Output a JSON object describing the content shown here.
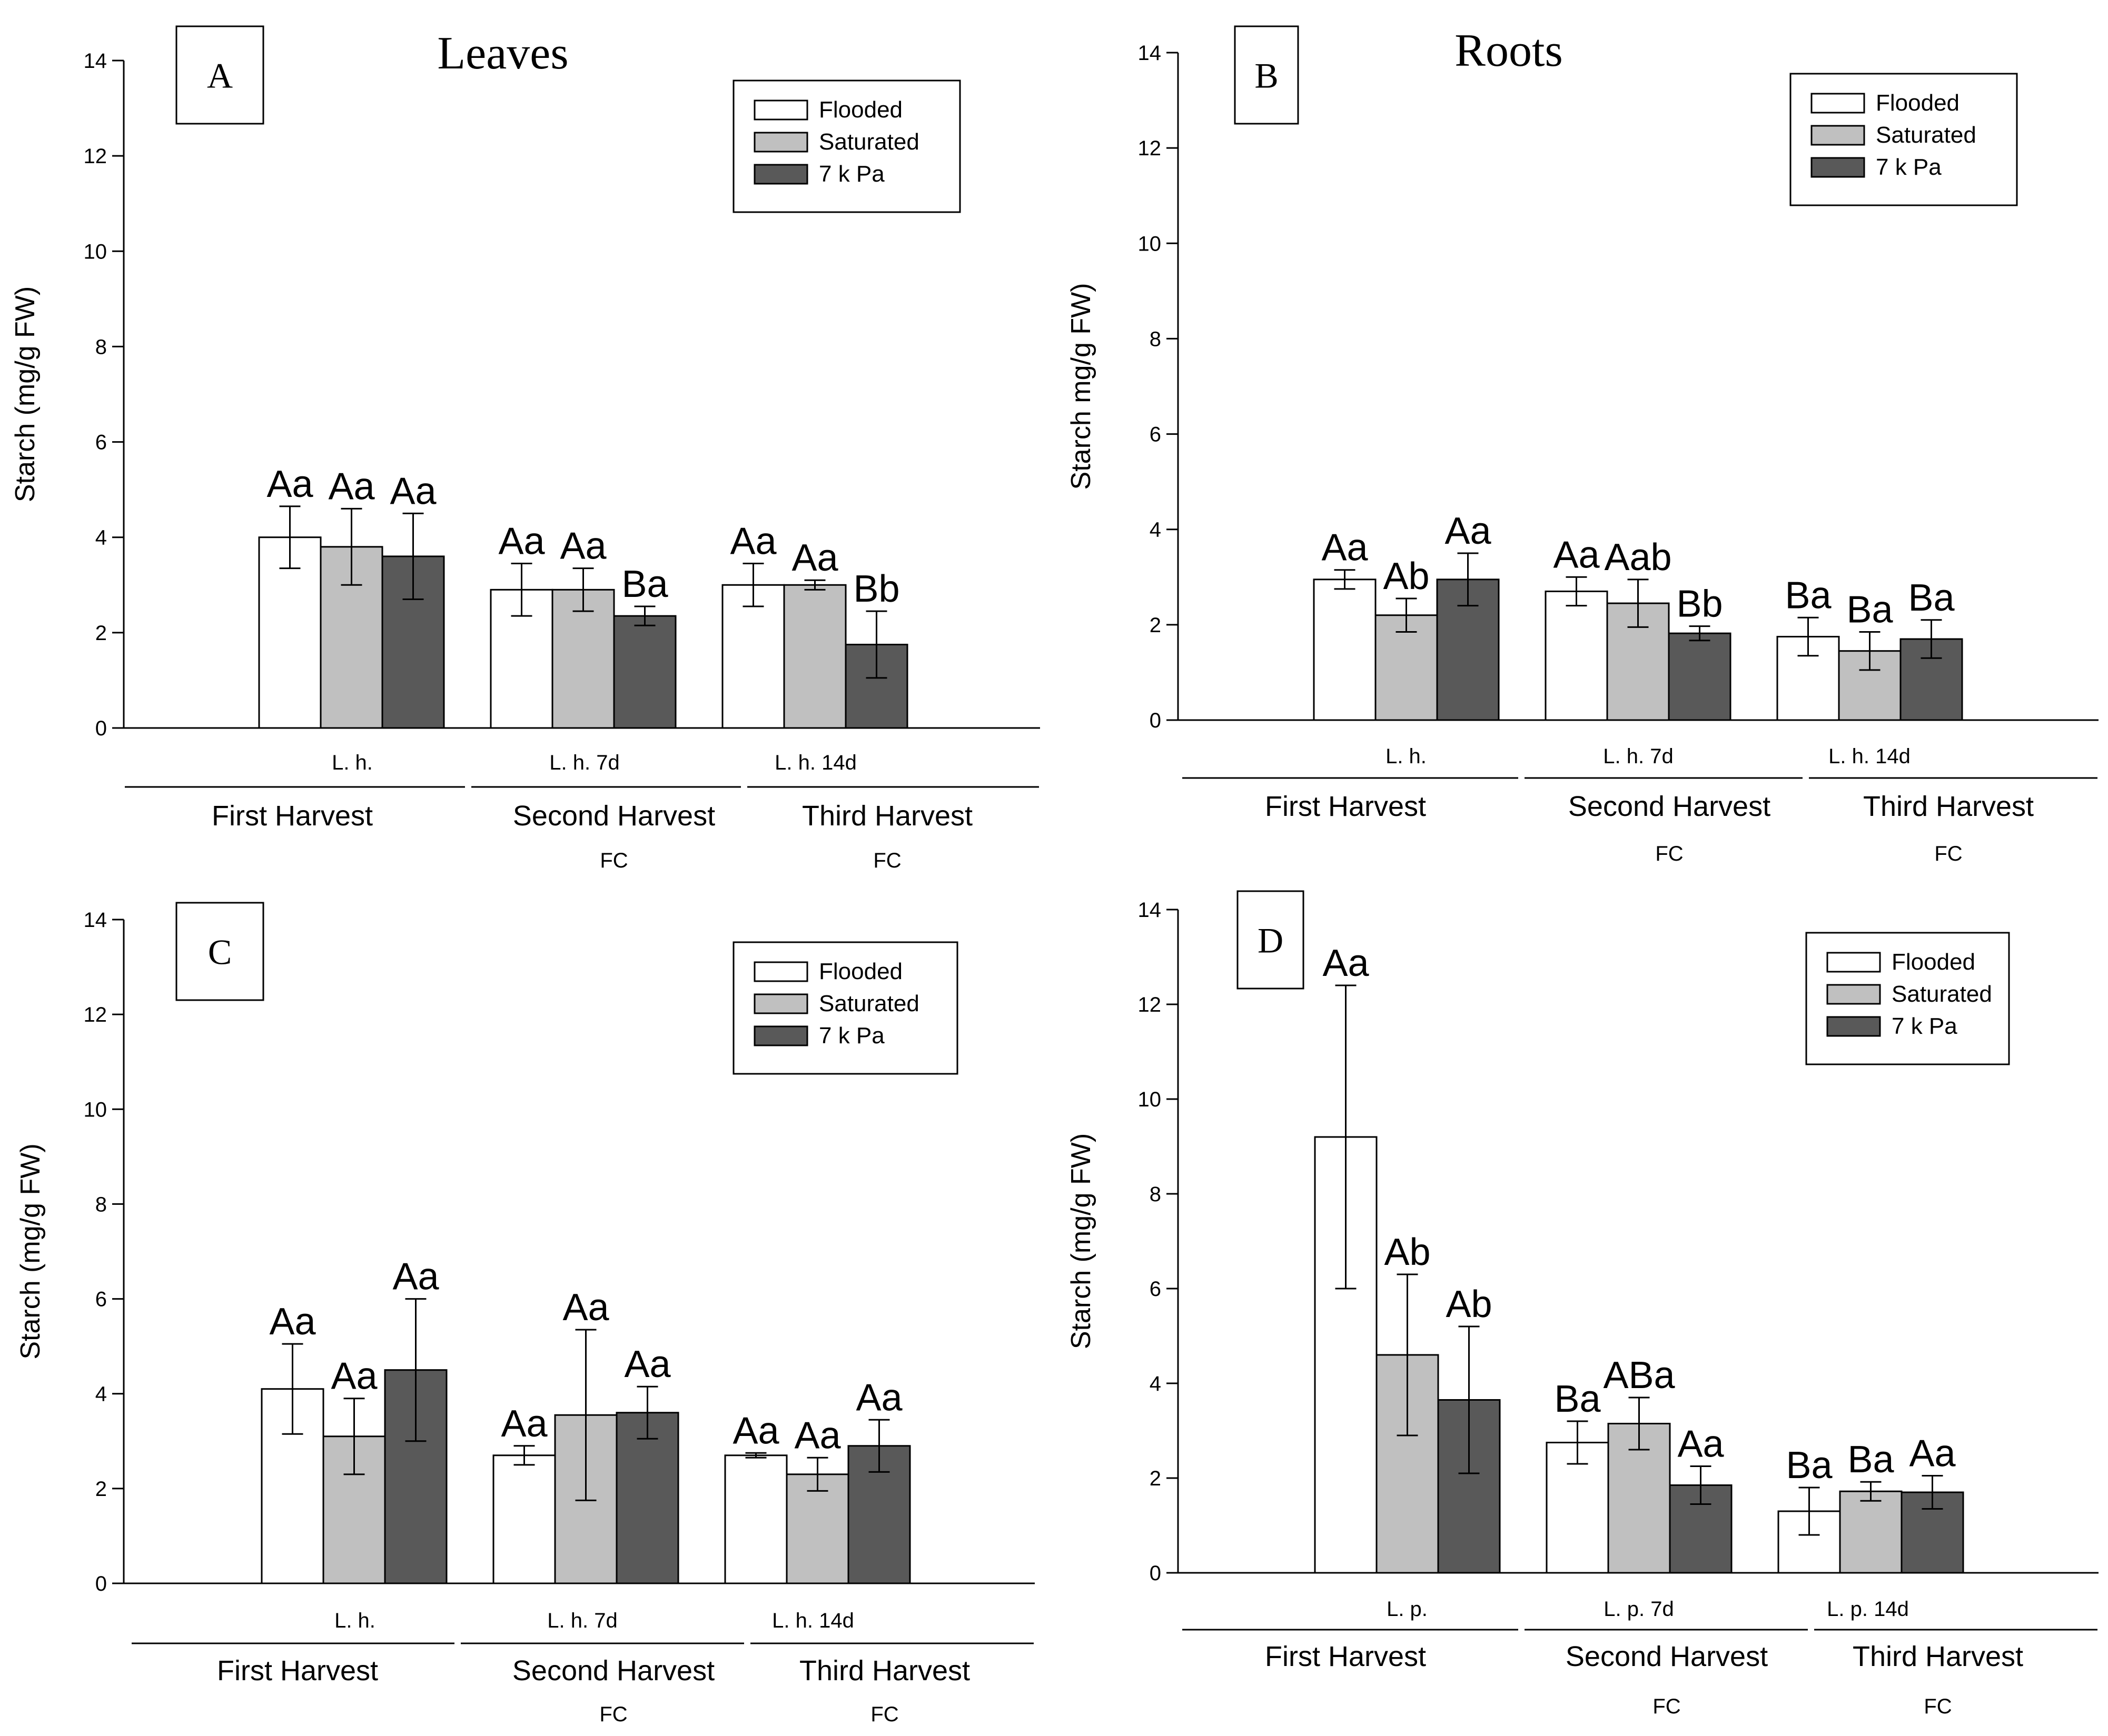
{
  "chart_data": [
    {
      "type": "bar",
      "panel_label": "A",
      "title": "Leaves",
      "ylabel": "Starch (mg/g FW)",
      "xlabel": "",
      "ylim": [
        0,
        14
      ],
      "yticks": [
        0,
        2,
        4,
        6,
        8,
        10,
        12,
        14
      ],
      "grid": false,
      "legend_position": "top-right",
      "categories": [
        "L. h.",
        "L. h. 7d",
        "L. h. 14d"
      ],
      "harvests": [
        {
          "name": "First Harvest",
          "sub": ""
        },
        {
          "name": "Second Harvest",
          "sub": "FC"
        },
        {
          "name": "Third Harvest",
          "sub": "FC"
        }
      ],
      "series": [
        {
          "name": "Flooded",
          "color": "#ffffff",
          "values": [
            4.0,
            2.9,
            3.0
          ],
          "errors": [
            0.65,
            0.55,
            0.45
          ],
          "labels": [
            "Aa",
            "Aa",
            "Aa"
          ]
        },
        {
          "name": "Saturated",
          "color": "#c0c0c0",
          "values": [
            3.8,
            2.9,
            3.0
          ],
          "errors": [
            0.8,
            0.45,
            0.1
          ],
          "labels": [
            "Aa",
            "Aa",
            "Aa"
          ]
        },
        {
          "name": "7 k Pa",
          "color": "#595959",
          "values": [
            3.6,
            2.35,
            1.75
          ],
          "errors": [
            0.9,
            0.2,
            0.7
          ],
          "labels": [
            "Aa",
            "Ba",
            "Bb"
          ]
        }
      ]
    },
    {
      "type": "bar",
      "panel_label": "B",
      "title": "Roots",
      "ylabel": "Starch mg/g FW)",
      "xlabel": "",
      "ylim": [
        0,
        14
      ],
      "yticks": [
        0,
        2,
        4,
        6,
        8,
        10,
        12,
        14
      ],
      "grid": false,
      "legend_position": "top-right",
      "categories": [
        "L. h.",
        "L. h. 7d",
        "L. h. 14d"
      ],
      "harvests": [
        {
          "name": "First Harvest",
          "sub": ""
        },
        {
          "name": "Second Harvest",
          "sub": "FC"
        },
        {
          "name": "Third Harvest",
          "sub": "FC"
        }
      ],
      "series": [
        {
          "name": "Flooded",
          "color": "#ffffff",
          "values": [
            2.95,
            2.7,
            1.75
          ],
          "errors": [
            0.2,
            0.3,
            0.4
          ],
          "labels": [
            "Aa",
            "Aa",
            "Ba"
          ]
        },
        {
          "name": "Saturated",
          "color": "#c0c0c0",
          "values": [
            2.2,
            2.45,
            1.45
          ],
          "errors": [
            0.35,
            0.5,
            0.4
          ],
          "labels": [
            "Ab",
            "Aab",
            "Ba"
          ]
        },
        {
          "name": "7 k Pa",
          "color": "#595959",
          "values": [
            2.95,
            1.82,
            1.7
          ],
          "errors": [
            0.55,
            0.15,
            0.4
          ],
          "labels": [
            "Aa",
            "Bb",
            "Ba"
          ]
        }
      ]
    },
    {
      "type": "bar",
      "panel_label": "C",
      "title": "",
      "ylabel": "Starch (mg/g FW)",
      "xlabel": "",
      "ylim": [
        0,
        14
      ],
      "yticks": [
        0,
        2,
        4,
        6,
        8,
        10,
        12,
        14
      ],
      "grid": false,
      "legend_position": "top-right",
      "categories": [
        "L. h.",
        "L. h. 7d",
        "L. h. 14d"
      ],
      "harvests": [
        {
          "name": "First Harvest",
          "sub": ""
        },
        {
          "name": "Second Harvest",
          "sub": "FC"
        },
        {
          "name": "Third Harvest",
          "sub": "FC"
        }
      ],
      "series": [
        {
          "name": "Flooded",
          "color": "#ffffff",
          "values": [
            4.1,
            2.7,
            2.7
          ],
          "errors": [
            0.95,
            0.2,
            0.05
          ],
          "labels": [
            "Aa",
            "Aa",
            "Aa"
          ]
        },
        {
          "name": "Saturated",
          "color": "#c0c0c0",
          "values": [
            3.1,
            3.55,
            2.3
          ],
          "errors": [
            0.8,
            1.8,
            0.35
          ],
          "labels": [
            "Aa",
            "Aa",
            "Aa"
          ]
        },
        {
          "name": "7 k Pa",
          "color": "#595959",
          "values": [
            4.5,
            3.6,
            2.9
          ],
          "errors": [
            1.5,
            0.55,
            0.55
          ],
          "labels": [
            "Aa",
            "Aa",
            "Aa"
          ]
        }
      ]
    },
    {
      "type": "bar",
      "panel_label": "D",
      "title": "",
      "ylabel": "Starch (mg/g FW)",
      "xlabel": "",
      "ylim": [
        0,
        14
      ],
      "yticks": [
        0,
        2,
        4,
        6,
        8,
        10,
        12,
        14
      ],
      "grid": false,
      "legend_position": "top-right",
      "categories": [
        "L. p.",
        "L. p. 7d",
        "L. p. 14d"
      ],
      "harvests": [
        {
          "name": "First Harvest",
          "sub": ""
        },
        {
          "name": "Second Harvest",
          "sub": "FC"
        },
        {
          "name": "Third Harvest",
          "sub": "FC"
        }
      ],
      "series": [
        {
          "name": "Flooded",
          "color": "#ffffff",
          "values": [
            9.2,
            2.75,
            1.3
          ],
          "errors": [
            3.2,
            0.45,
            0.5
          ],
          "labels": [
            "Aa",
            "Ba",
            "Ba"
          ]
        },
        {
          "name": "Saturated",
          "color": "#c0c0c0",
          "values": [
            4.6,
            3.15,
            1.72
          ],
          "errors": [
            1.7,
            0.55,
            0.2
          ],
          "labels": [
            "Ab",
            "ABa",
            "Ba"
          ]
        },
        {
          "name": "7 k Pa",
          "color": "#595959",
          "values": [
            3.65,
            1.85,
            1.7
          ],
          "errors": [
            1.55,
            0.4,
            0.35
          ],
          "labels": [
            "Ab",
            "Aa",
            "Aa"
          ]
        }
      ]
    }
  ]
}
